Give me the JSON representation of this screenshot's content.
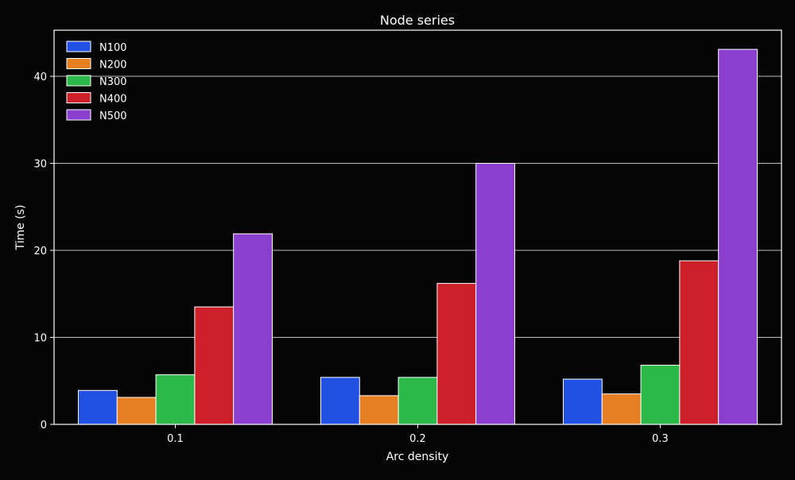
{
  "chart_data": {
    "type": "bar",
    "title": "Node series",
    "xlabel": "Arc density",
    "ylabel": "Time (s)",
    "categories": [
      "0.1",
      "0.2",
      "0.3"
    ],
    "ylim": [
      0,
      45.3
    ],
    "yticks": [
      0,
      10,
      20,
      30,
      40
    ],
    "grid": "y",
    "legend_position": "top-left",
    "series": [
      {
        "name": "N100",
        "color": "#2150e3",
        "values": [
          3.9,
          5.4,
          5.2
        ]
      },
      {
        "name": "N200",
        "color": "#e67e22",
        "values": [
          3.1,
          3.3,
          3.5
        ]
      },
      {
        "name": "N300",
        "color": "#2db84a",
        "values": [
          5.7,
          5.4,
          6.8
        ]
      },
      {
        "name": "N400",
        "color": "#cc1f2a",
        "values": [
          13.5,
          16.2,
          18.8
        ]
      },
      {
        "name": "N500",
        "color": "#8a3fcf",
        "values": [
          21.9,
          30.0,
          43.1
        ]
      }
    ]
  }
}
